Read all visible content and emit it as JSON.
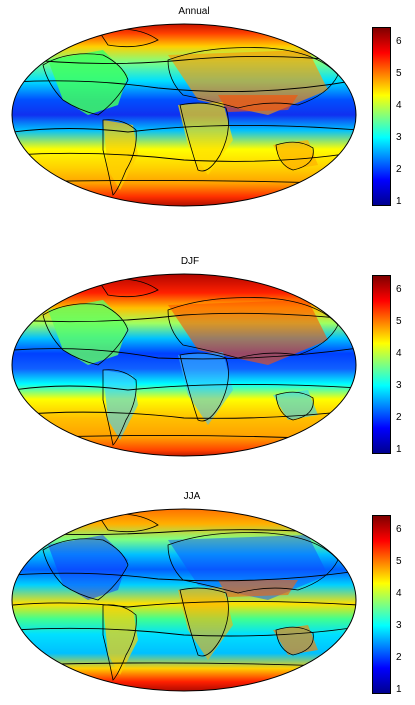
{
  "panels": [
    {
      "title": "Annual"
    },
    {
      "title": "DJF"
    },
    {
      "title": "JJA"
    }
  ],
  "colorbar": {
    "ticks": [
      "6",
      "5",
      "4",
      "3",
      "2",
      "1"
    ],
    "range": [
      1,
      6.5
    ],
    "colormap": [
      "#00008f",
      "#0000ff",
      "#007fff",
      "#00ffff",
      "#7fff7f",
      "#ffff00",
      "#ff7f00",
      "#ff0000",
      "#7f0000"
    ]
  },
  "colors": {
    "ocean_equator": "#1040ff",
    "polar": "#c00000",
    "coast": "#000000"
  }
}
